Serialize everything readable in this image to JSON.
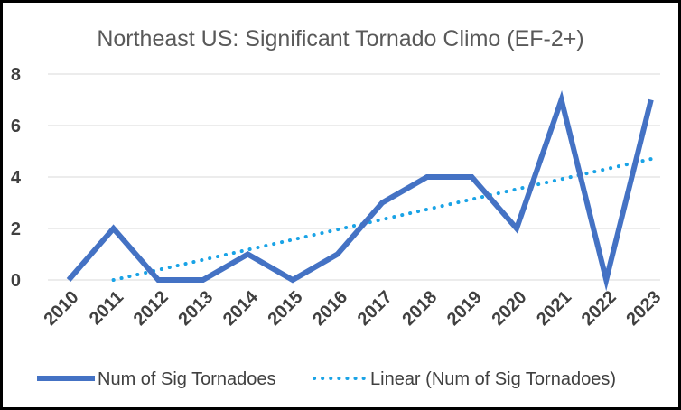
{
  "chart_data": {
    "type": "line",
    "title": "Northeast US: Significant Tornado Climo (EF-2+)",
    "xlabel": "",
    "ylabel": "",
    "categories": [
      "2010",
      "2011",
      "2012",
      "2013",
      "2014",
      "2015",
      "2016",
      "2017",
      "2018",
      "2019",
      "2020",
      "2021",
      "2022",
      "2023"
    ],
    "yticks": [
      "0",
      "2",
      "4",
      "6",
      "8"
    ],
    "ylim": [
      0,
      8
    ],
    "grid": true,
    "legend_position": "bottom",
    "series": [
      {
        "name": "Num of Sig Tornadoes",
        "values": [
          0,
          2,
          0,
          0,
          1,
          0,
          1,
          3,
          4,
          4,
          2,
          7,
          0,
          7
        ],
        "color": "#4472C4",
        "style": "solid"
      }
    ],
    "trendline": {
      "name": "Linear (Num of Sig Tornadoes)",
      "type": "linear",
      "start": [
        2011,
        0
      ],
      "end": [
        2023,
        4.7
      ],
      "color": "#1AA3E6",
      "style": "dotted"
    }
  }
}
